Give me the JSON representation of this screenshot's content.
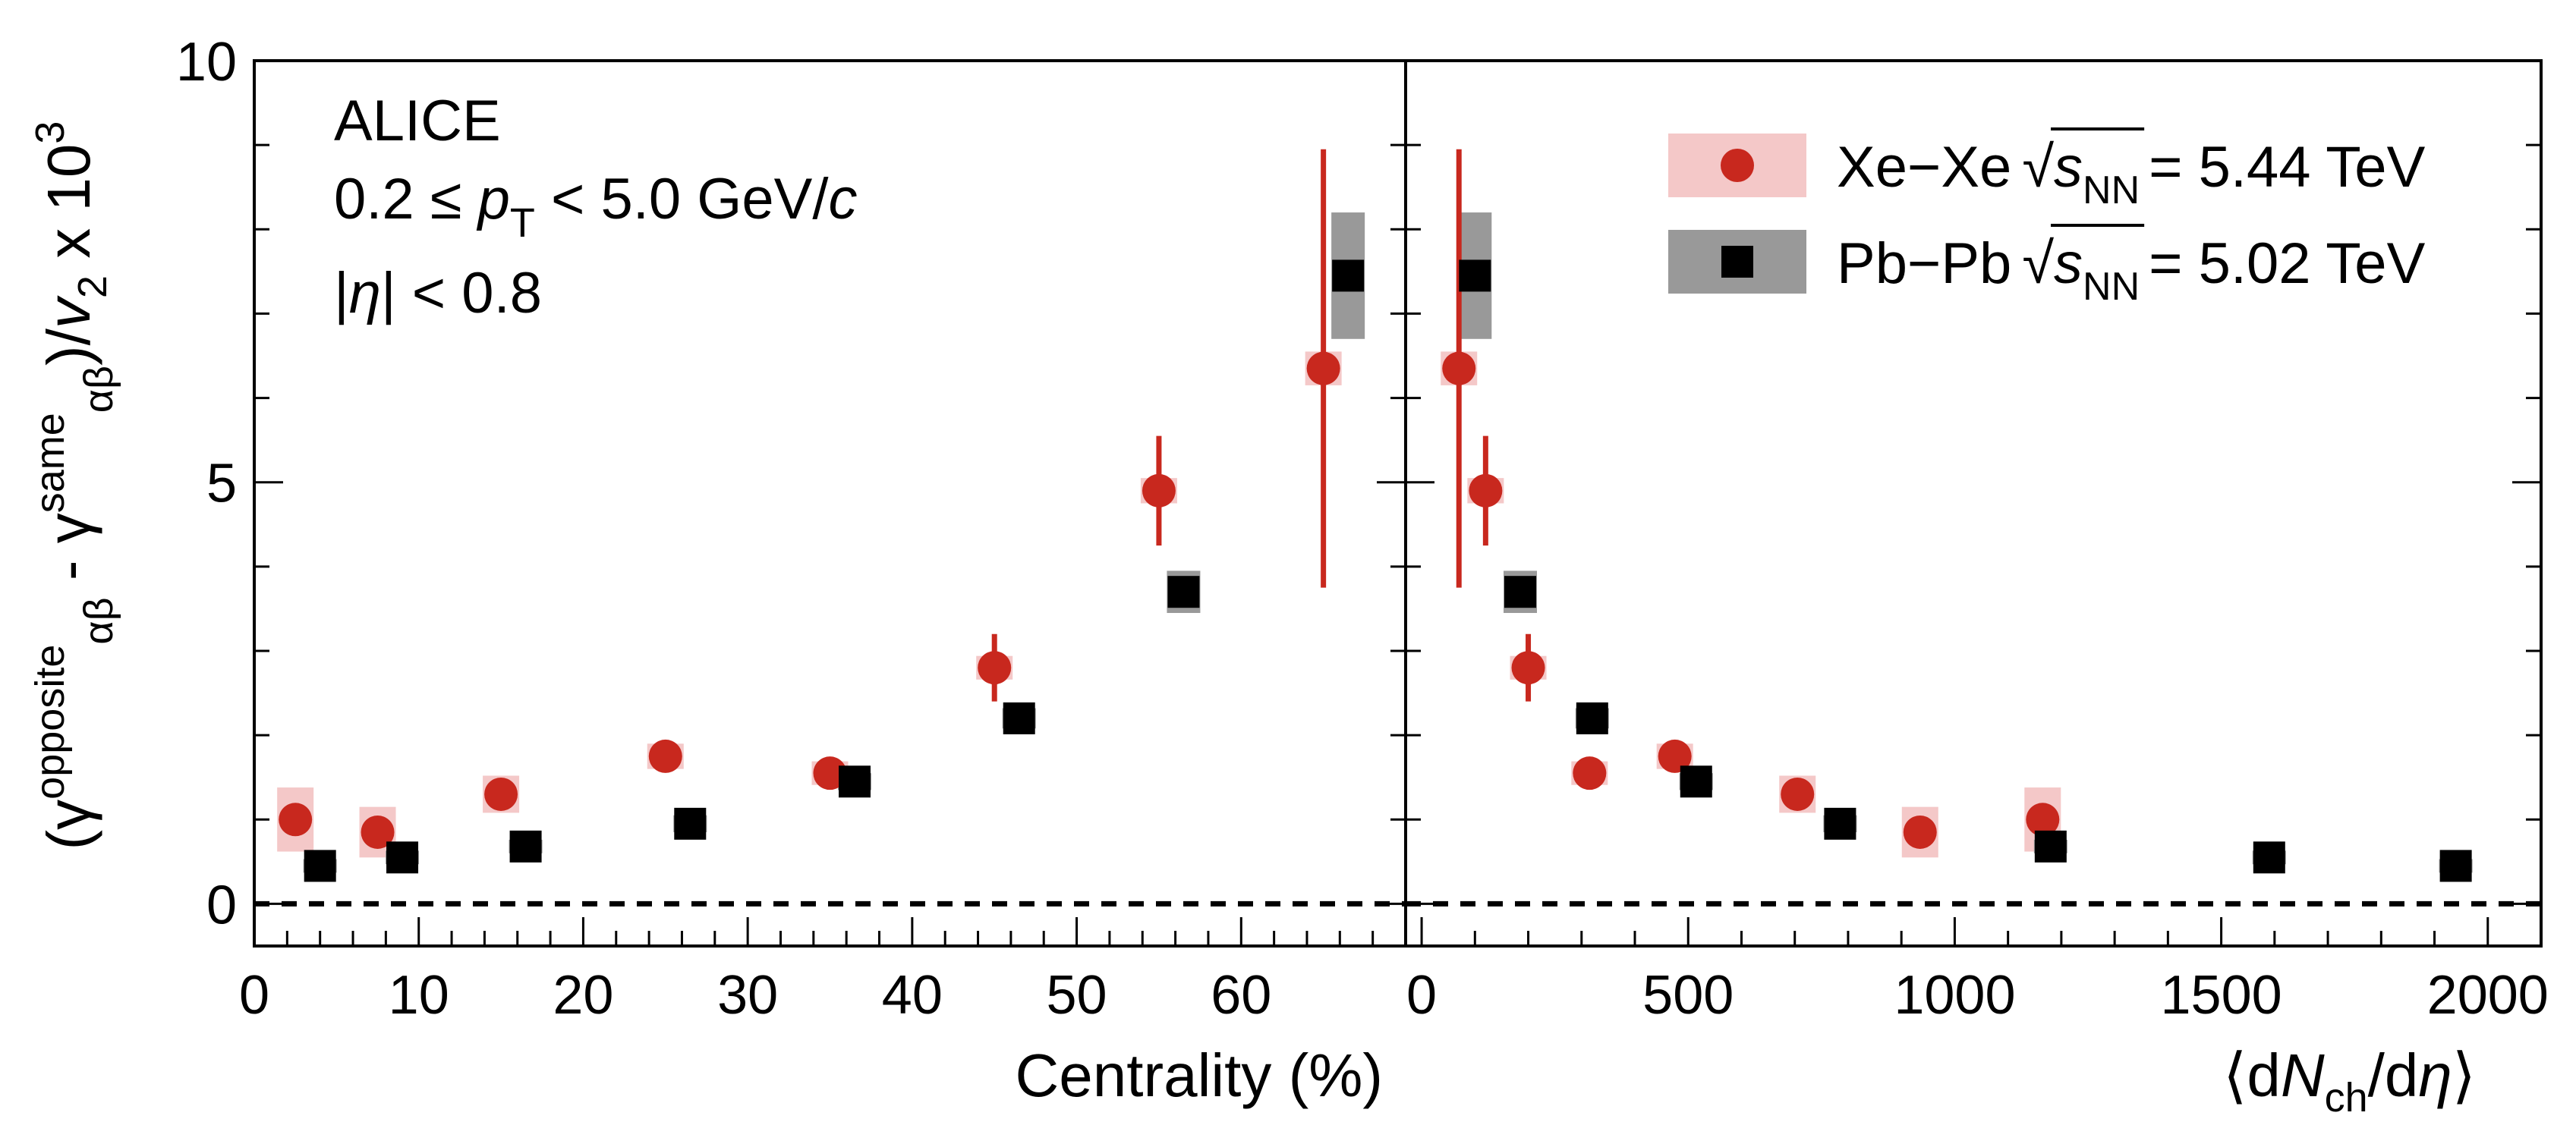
{
  "chart_data": {
    "type": "scatter",
    "y_axis": {
      "label_parts": [
        "(γ",
        "opposite",
        "αβ",
        " - γ",
        "same",
        "αβ",
        ")/",
        "v",
        "2",
        " x 10",
        "3"
      ],
      "ylim": [
        -0.5,
        10
      ],
      "ticks": [
        0,
        5,
        10
      ],
      "tick_labels": [
        "0",
        "5",
        "10"
      ],
      "minor_step": 1
    },
    "annotations": {
      "experiment": "ALICE",
      "pt_cut_parts": [
        "0.2 ≤ ",
        "p",
        "T",
        " < 5.0 GeV/",
        "c"
      ],
      "eta_cut_parts": [
        "|",
        "η",
        "| < 0.8"
      ]
    },
    "reference_line": {
      "y": 0,
      "style": "dashed"
    },
    "panels": [
      {
        "id": "centrality",
        "xlabel": "Centrality (%)",
        "xlim": [
          0,
          70
        ],
        "ticks": [
          0,
          10,
          20,
          30,
          40,
          50,
          60
        ],
        "tick_labels": [
          "0",
          "10",
          "20",
          "30",
          "40",
          "50",
          "60"
        ],
        "minor_step": 2,
        "series": [
          {
            "name": "Xe-Xe",
            "marker": "circle",
            "points": [
              {
                "x": 2.5,
                "y": 1.0,
                "err": 0.15,
                "sys": 0.38
              },
              {
                "x": 7.5,
                "y": 0.85,
                "err": 0.1,
                "sys": 0.3
              },
              {
                "x": 15,
                "y": 1.3,
                "err": 0.1,
                "sys": 0.22
              },
              {
                "x": 25,
                "y": 1.75,
                "err": 0.1,
                "sys": 0.15
              },
              {
                "x": 35,
                "y": 1.55,
                "err": 0.15,
                "sys": 0.14
              },
              {
                "x": 45,
                "y": 2.8,
                "err": 0.4,
                "sys": 0.14
              },
              {
                "x": 55,
                "y": 4.9,
                "err": 0.65,
                "sys": 0.15
              },
              {
                "x": 65,
                "y": 6.35,
                "err": 2.6,
                "sys": 0.2
              }
            ]
          },
          {
            "name": "Pb-Pb",
            "marker": "square",
            "points": [
              {
                "x": 4,
                "y": 0.45,
                "err": 0.04,
                "sys": 0.08
              },
              {
                "x": 9,
                "y": 0.55,
                "err": 0.04,
                "sys": 0.08
              },
              {
                "x": 16.5,
                "y": 0.68,
                "err": 0.04,
                "sys": 0.08
              },
              {
                "x": 26.5,
                "y": 0.95,
                "err": 0.05,
                "sys": 0.1
              },
              {
                "x": 36.5,
                "y": 1.45,
                "err": 0.05,
                "sys": 0.1
              },
              {
                "x": 46.5,
                "y": 2.2,
                "err": 0.05,
                "sys": 0.12
              },
              {
                "x": 56.5,
                "y": 3.7,
                "err": 0.08,
                "sys": 0.25
              },
              {
                "x": 66.5,
                "y": 7.45,
                "err": 0.15,
                "sys": 0.75
              }
            ]
          }
        ]
      },
      {
        "id": "multiplicity",
        "xlabel_parts": [
          "⟨d",
          "N",
          "ch",
          "/d",
          "η",
          "⟩"
        ],
        "xlim": [
          -30,
          2100
        ],
        "ticks": [
          0,
          500,
          1000,
          1500,
          2000
        ],
        "tick_labels": [
          "0",
          "500",
          "1000",
          "1500",
          "2000"
        ],
        "minor_step": 100,
        "legend": {
          "position": "top-right",
          "entries": [
            {
              "series": "Xe-Xe",
              "label": "Xe−Xe",
              "energy": " = 5.44 TeV"
            },
            {
              "series": "Pb-Pb",
              "label": "Pb−Pb",
              "energy": " = 5.02 TeV"
            }
          ],
          "sqrt_symbol": "√",
          "s_letter": "s",
          "nn_subscript": "NN"
        },
        "series": [
          {
            "name": "Xe-Xe",
            "marker": "circle",
            "points": [
              {
                "x": 70,
                "y": 6.35,
                "err": 2.6,
                "sys": 0.2
              },
              {
                "x": 120,
                "y": 4.9,
                "err": 0.65,
                "sys": 0.15
              },
              {
                "x": 200,
                "y": 2.8,
                "err": 0.4,
                "sys": 0.14
              },
              {
                "x": 315,
                "y": 1.55,
                "err": 0.15,
                "sys": 0.14
              },
              {
                "x": 475,
                "y": 1.75,
                "err": 0.1,
                "sys": 0.15
              },
              {
                "x": 705,
                "y": 1.3,
                "err": 0.1,
                "sys": 0.22
              },
              {
                "x": 935,
                "y": 0.85,
                "err": 0.1,
                "sys": 0.3
              },
              {
                "x": 1165,
                "y": 1.0,
                "err": 0.15,
                "sys": 0.38
              }
            ]
          },
          {
            "name": "Pb-Pb",
            "marker": "square",
            "points": [
              {
                "x": 100,
                "y": 7.45,
                "err": 0.15,
                "sys": 0.75
              },
              {
                "x": 185,
                "y": 3.7,
                "err": 0.08,
                "sys": 0.25
              },
              {
                "x": 320,
                "y": 2.2,
                "err": 0.05,
                "sys": 0.12
              },
              {
                "x": 515,
                "y": 1.45,
                "err": 0.05,
                "sys": 0.1
              },
              {
                "x": 785,
                "y": 0.95,
                "err": 0.05,
                "sys": 0.1
              },
              {
                "x": 1180,
                "y": 0.68,
                "err": 0.04,
                "sys": 0.08
              },
              {
                "x": 1590,
                "y": 0.55,
                "err": 0.04,
                "sys": 0.08
              },
              {
                "x": 1940,
                "y": 0.45,
                "err": 0.04,
                "sys": 0.08
              }
            ]
          }
        ]
      }
    ],
    "colors": {
      "xe_marker": "#c8281e",
      "xe_sys_box": "#f4c8c8",
      "pb_marker": "#000000",
      "pb_sys_box": "#999999",
      "frame": "#000000"
    }
  }
}
